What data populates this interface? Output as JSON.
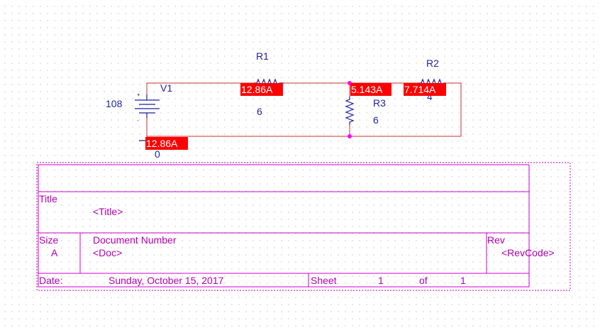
{
  "schematic": {
    "components": {
      "v1": {
        "ref": "V1",
        "value": "108"
      },
      "r1": {
        "ref": "R1",
        "value": "6"
      },
      "r2": {
        "ref": "R2",
        "value": "4"
      },
      "r3": {
        "ref": "R3",
        "value": "6"
      },
      "ground": {
        "label": "0"
      }
    },
    "current_flags": {
      "r1": "12.86A",
      "r3": "5.143A",
      "r2": "7.714A",
      "v1": "12.86A"
    },
    "colors": {
      "wire": "#c83232",
      "component": "#1f1fa0",
      "title_block": "#cc00cc",
      "flag": "#ff0000"
    }
  },
  "title_block": {
    "title_label": "Title",
    "title_value": "<Title>",
    "size_label": "Size",
    "size_value": "A",
    "doc_label": "Document Number",
    "doc_value": "<Doc>",
    "rev_label": "Rev",
    "rev_value": "<RevCode>",
    "date_label": "Date:",
    "date_value": "Sunday, October 15, 2017",
    "sheet_label": "Sheet",
    "sheet_number": "1",
    "of_label": "of",
    "sheet_total": "1"
  }
}
